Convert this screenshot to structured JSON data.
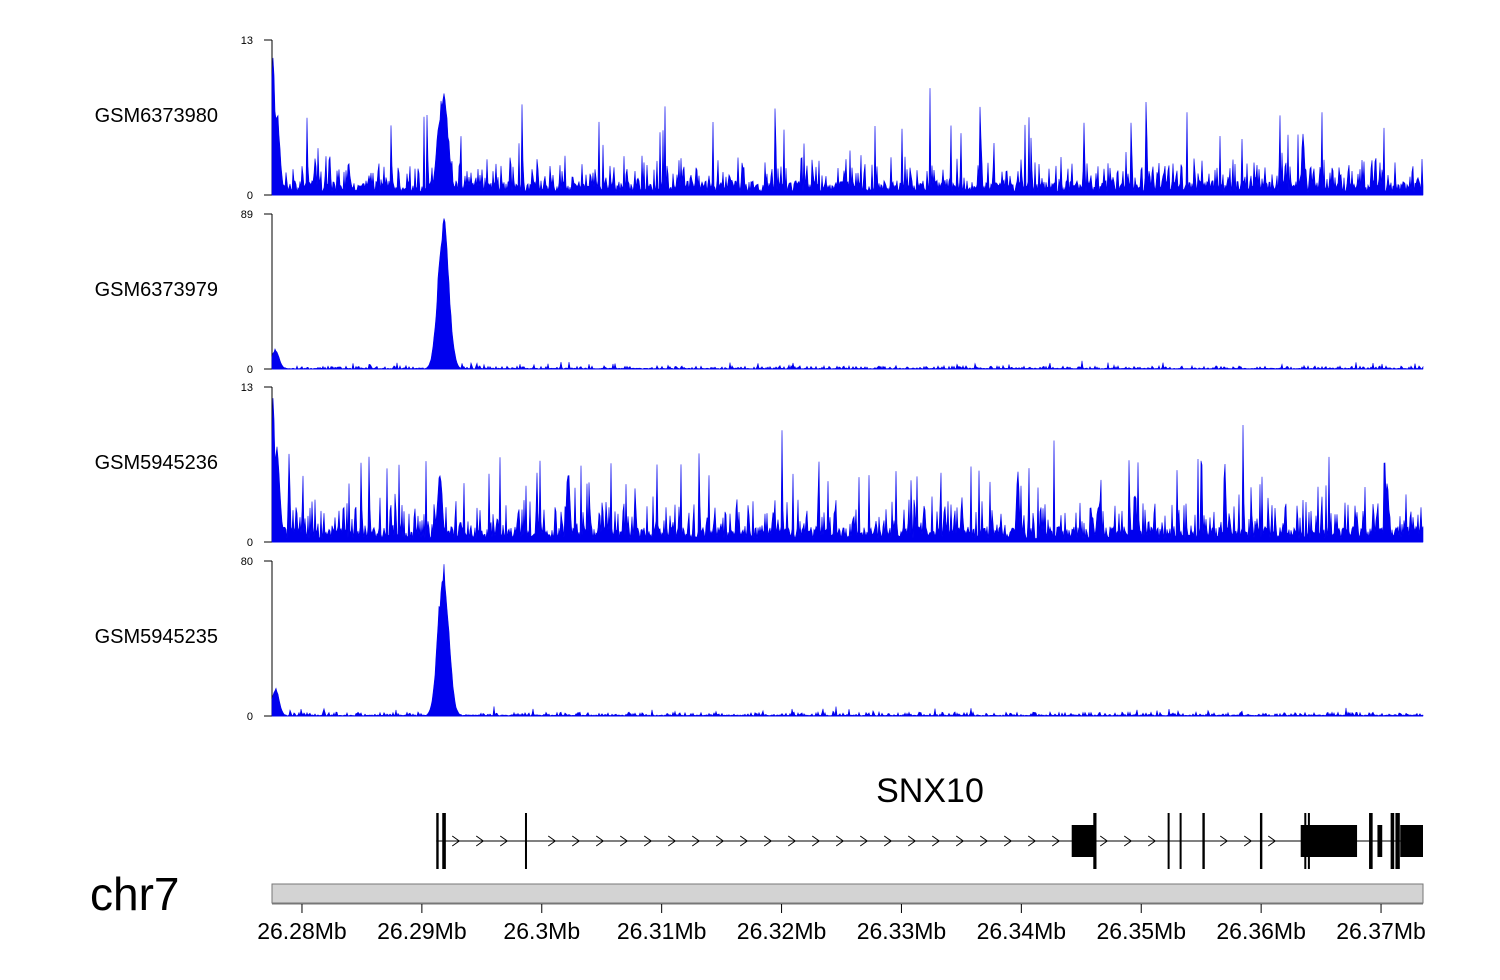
{
  "chart_data": {
    "type": "area",
    "title": "",
    "x_unit": "Mb",
    "xlim": [
      26.2775,
      26.3735
    ],
    "chromosome": "chr7",
    "x_ticks": [
      26.28,
      26.29,
      26.3,
      26.31,
      26.32,
      26.33,
      26.34,
      26.35,
      26.36,
      26.37
    ],
    "x_tick_labels": [
      "26.28Mb",
      "26.29Mb",
      "26.3Mb",
      "26.31Mb",
      "26.32Mb",
      "26.33Mb",
      "26.34Mb",
      "26.35Mb",
      "26.36Mb",
      "26.37Mb"
    ],
    "series_color": "#0000ee",
    "series": [
      {
        "name": "GSM6373980",
        "ylim": [
          0,
          13
        ],
        "y_ticks": [
          "0",
          "13"
        ],
        "baseline": 1.2,
        "noise": 2.2,
        "spike_rate": 0.05,
        "spike_height": 4.5,
        "seed": 11,
        "peaks": [
          {
            "x": 26.2776,
            "y": 12.8,
            "w": 0.00015
          },
          {
            "x": 26.2779,
            "y": 7.5,
            "w": 0.00025
          },
          {
            "x": 26.2918,
            "y": 8.8,
            "w": 0.0004
          },
          {
            "x": 26.2915,
            "y": 6.6,
            "w": 0.0003
          },
          {
            "x": 26.3635,
            "y": 5.7,
            "w": 0.00012
          }
        ]
      },
      {
        "name": "GSM6373979",
        "ylim": [
          0,
          89
        ],
        "y_ticks": [
          "0",
          "89"
        ],
        "baseline": 0.5,
        "noise": 1.5,
        "spike_rate": 0.03,
        "spike_height": 2.5,
        "seed": 23,
        "peaks": [
          {
            "x": 26.2778,
            "y": 12,
            "w": 0.0003
          },
          {
            "x": 26.2918,
            "y": 89,
            "w": 0.00045
          },
          {
            "x": 26.2914,
            "y": 28,
            "w": 0.0003
          }
        ]
      },
      {
        "name": "GSM5945236",
        "ylim": [
          0,
          13
        ],
        "y_ticks": [
          "0",
          "13"
        ],
        "baseline": 1.3,
        "noise": 2.6,
        "spike_rate": 0.06,
        "spike_height": 4.5,
        "seed": 37,
        "peaks": [
          {
            "x": 26.2776,
            "y": 12.6,
            "w": 0.00015
          },
          {
            "x": 26.2779,
            "y": 8.5,
            "w": 0.00025
          },
          {
            "x": 26.2915,
            "y": 6.3,
            "w": 0.0002
          },
          {
            "x": 26.3022,
            "y": 6.3,
            "w": 0.00015
          },
          {
            "x": 26.3397,
            "y": 6.3,
            "w": 0.00012
          },
          {
            "x": 26.3705,
            "y": 5.2,
            "w": 0.00015
          }
        ]
      },
      {
        "name": "GSM5945235",
        "ylim": [
          0,
          80
        ],
        "y_ticks": [
          "0",
          "80"
        ],
        "baseline": 0.6,
        "noise": 1.6,
        "spike_rate": 0.03,
        "spike_height": 2.5,
        "seed": 51,
        "peaks": [
          {
            "x": 26.2778,
            "y": 15,
            "w": 0.0003
          },
          {
            "x": 26.2918,
            "y": 80,
            "w": 0.00045
          },
          {
            "x": 26.2914,
            "y": 35,
            "w": 0.0003
          }
        ]
      }
    ],
    "gene": {
      "name": "SNX10",
      "strand": "+",
      "start": 26.2912,
      "end": 26.3735,
      "exons": [
        {
          "start": 26.2912,
          "end": 26.2914,
          "type": "utr"
        },
        {
          "start": 26.2917,
          "end": 26.292,
          "type": "utr"
        },
        {
          "start": 26.2986,
          "end": 26.2987,
          "type": "utr"
        },
        {
          "start": 26.3442,
          "end": 26.3461,
          "type": "coding"
        },
        {
          "start": 26.346,
          "end": 26.3461,
          "type": "utr"
        },
        {
          "start": 26.3522,
          "end": 26.3523,
          "type": "utr"
        },
        {
          "start": 26.3532,
          "end": 26.3533,
          "type": "utr"
        },
        {
          "start": 26.3551,
          "end": 26.3553,
          "type": "utr"
        },
        {
          "start": 26.3599,
          "end": 26.3601,
          "type": "utr"
        },
        {
          "start": 26.3633,
          "end": 26.364,
          "type": "coding"
        },
        {
          "start": 26.364,
          "end": 26.368,
          "type": "coding"
        },
        {
          "start": 26.369,
          "end": 26.3693,
          "type": "utr"
        },
        {
          "start": 26.3697,
          "end": 26.3701,
          "type": "coding"
        },
        {
          "start": 26.3708,
          "end": 26.3711,
          "type": "utr"
        },
        {
          "start": 26.3712,
          "end": 26.3715,
          "type": "utr"
        },
        {
          "start": 26.3716,
          "end": 26.3735,
          "type": "coding"
        }
      ]
    }
  }
}
